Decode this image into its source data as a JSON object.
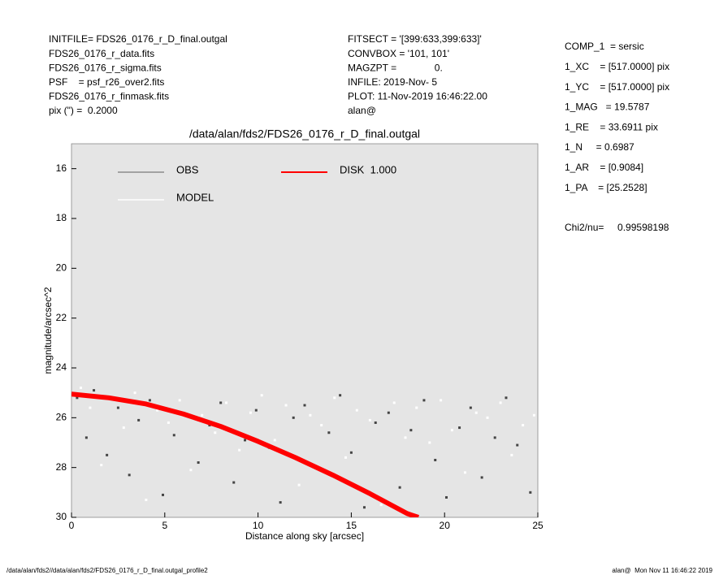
{
  "info_left": [
    "INITFILE= FDS26_0176_r_D_final.outgal",
    "FDS26_0176_r_data.fits",
    "FDS26_0176_r_sigma.fits",
    "PSF    = psf_r26_over2.fits",
    "FDS26_0176_r_finmask.fits",
    "pix (\") =  0.2000"
  ],
  "info_middle": [
    "FITSECT = '[399:633,399:633]'",
    "CONVBOX = '101, 101'",
    "MAGZPT =              0.",
    "INFILE: 2019-Nov- 5",
    "PLOT: 11-Nov-2019 16:46:22.00",
    "alan@"
  ],
  "params": [
    "COMP_1  = sersic",
    "1_XC    = [517.0000] pix",
    "1_YC    = [517.0000] pix",
    "1_MAG   = 19.5787",
    "1_RE    = 33.6911 pix",
    "1_N     = 0.6987",
    "1_AR    = [0.9084]",
    "1_PA    = [25.2528]"
  ],
  "chi2": "Chi2/nu=     0.99598198",
  "footer_left": "/data/alan/fds2//data/alan/fds2/FDS26_0176_r_D_final.outgal_profile2",
  "footer_right": "alan@  Mon Nov 11 16:46:22 2019",
  "chart_data": {
    "type": "scatter",
    "title": "/data/alan/fds2/FDS26_0176_r_D_final.outgal",
    "xlabel": "Distance along sky [arcsec]",
    "ylabel": "magnitude/arcsec^2",
    "xlim": [
      0,
      25
    ],
    "xticks": [
      0,
      5,
      10,
      15,
      20,
      25
    ],
    "ylim": [
      30,
      15
    ],
    "yticks": [
      16,
      18,
      20,
      22,
      24,
      26,
      28,
      30
    ],
    "background": "#e5e5e5",
    "series": [
      {
        "name": "OBS",
        "color": "#444444",
        "legend_color": "#8c8c8c",
        "kind": "points",
        "x": [
          0.3,
          0.8,
          1.2,
          1.9,
          2.5,
          3.1,
          3.6,
          4.2,
          4.9,
          5.5,
          6.1,
          6.8,
          7.4,
          8.0,
          8.7,
          9.3,
          9.9,
          10.6,
          11.2,
          11.9,
          12.5,
          13.1,
          13.8,
          14.4,
          15.0,
          15.7,
          16.3,
          17.0,
          17.6,
          18.2,
          18.9,
          19.5,
          20.1,
          20.8,
          21.4,
          22.0,
          22.7,
          23.3,
          23.9,
          24.6
        ],
        "values": [
          25.2,
          26.8,
          24.9,
          27.5,
          25.6,
          28.3,
          26.1,
          25.3,
          29.1,
          26.7,
          25.9,
          27.8,
          26.3,
          25.4,
          28.6,
          26.9,
          25.7,
          27.2,
          29.4,
          26.0,
          25.5,
          28.0,
          26.6,
          25.1,
          27.4,
          29.6,
          26.2,
          25.8,
          28.8,
          26.5,
          25.3,
          27.7,
          29.2,
          26.4,
          25.6,
          28.4,
          26.8,
          25.2,
          27.1,
          29.0
        ]
      },
      {
        "name": "MODEL",
        "color": "#ffffff",
        "legend_color": "#ffffff",
        "kind": "points",
        "x": [
          0.5,
          1.0,
          1.6,
          2.2,
          2.8,
          3.4,
          4.0,
          4.6,
          5.2,
          5.8,
          6.4,
          7.0,
          7.7,
          8.3,
          9.0,
          9.6,
          10.2,
          10.9,
          11.5,
          12.2,
          12.8,
          13.4,
          14.1,
          14.7,
          15.3,
          16.0,
          16.6,
          17.3,
          17.9,
          18.5,
          19.2,
          19.8,
          20.4,
          21.1,
          21.7,
          22.3,
          23.0,
          23.6,
          24.2,
          24.8
        ],
        "values": [
          24.8,
          25.6,
          27.9,
          25.2,
          26.4,
          25.0,
          29.3,
          25.7,
          26.2,
          25.3,
          28.1,
          25.9,
          26.6,
          25.4,
          27.3,
          25.8,
          25.1,
          26.9,
          25.5,
          28.7,
          25.9,
          26.3,
          25.2,
          27.6,
          25.7,
          26.1,
          29.5,
          25.4,
          26.8,
          25.6,
          27.0,
          25.3,
          26.5,
          28.2,
          25.8,
          26.0,
          25.4,
          27.5,
          26.3,
          25.9
        ]
      },
      {
        "name": "DISK  1.000",
        "color": "#ff0000",
        "legend_color": "#ff0000",
        "kind": "line",
        "x": [
          0,
          2,
          4,
          6,
          8,
          10,
          12,
          14,
          16,
          18,
          18.6
        ],
        "values": [
          25.05,
          25.2,
          25.45,
          25.85,
          26.35,
          26.95,
          27.6,
          28.3,
          29.05,
          29.85,
          30.0
        ]
      }
    ]
  }
}
